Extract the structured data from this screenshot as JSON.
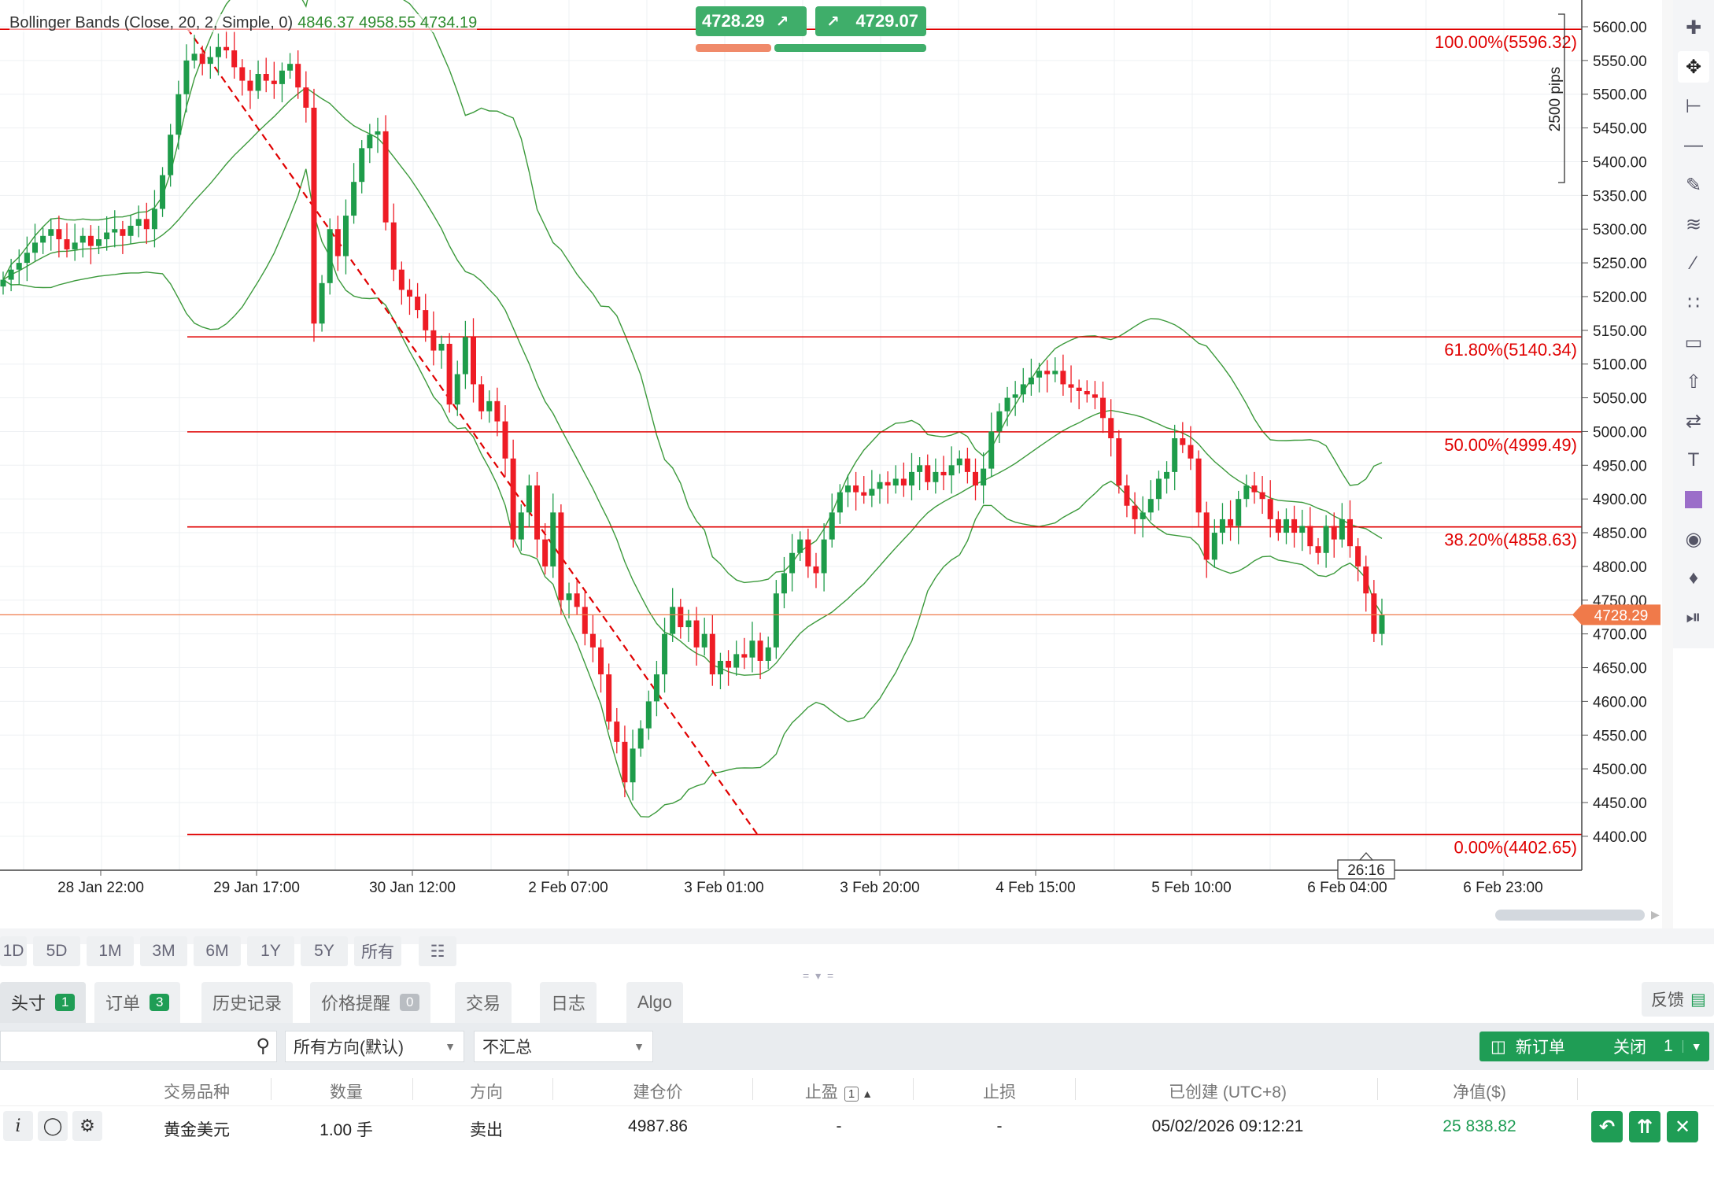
{
  "indicator": {
    "label": "Bollinger Bands (Close, 20, 2, Simple, 0)",
    "values": "4846.37  4958.55  4734.19"
  },
  "trade": {
    "sell_price": "4728.29",
    "buy_price": "4729.07"
  },
  "price_tag": "4728.29",
  "time_badge": "26:16",
  "pips_label": "2500 pips",
  "fib_levels": [
    {
      "label": "100.00%(5596.32)",
      "price": 5596.32
    },
    {
      "label": "61.80%(5140.34)",
      "price": 5140.34
    },
    {
      "label": "50.00%(4999.49)",
      "price": 4999.49
    },
    {
      "label": "38.20%(4858.63)",
      "price": 4858.63
    },
    {
      "label": "0.00%(4402.65)",
      "price": 4402.65
    }
  ],
  "colors": {
    "up": "#1e9c4a",
    "down": "#ee1c25",
    "fib": "#e00000",
    "band": "#3c9a3c",
    "price_line": "#f07a4a",
    "accent": "#1f9d55"
  },
  "price_axis": {
    "min": 4370,
    "max": 5630,
    "ticks": [
      "5600.00",
      "5550.00",
      "5500.00",
      "5450.00",
      "5400.00",
      "5350.00",
      "5300.00",
      "5250.00",
      "5200.00",
      "5150.00",
      "5100.00",
      "5050.00",
      "5000.00",
      "4950.00",
      "4900.00",
      "4850.00",
      "4800.00",
      "4750.00",
      "4700.00",
      "4650.00",
      "4600.00",
      "4550.00",
      "4500.00",
      "4450.00",
      "4400.00"
    ]
  },
  "time_axis": [
    "28 Jan 22:00",
    "29 Jan 17:00",
    "30 Jan 12:00",
    "2 Feb 07:00",
    "3 Feb 01:00",
    "3 Feb 20:00",
    "4 Feb 15:00",
    "5 Feb 10:00",
    "6 Feb 04:00",
    "6 Feb 23:00"
  ],
  "chart_data": {
    "type": "candlestick",
    "title": "",
    "ylim": [
      4370,
      5630
    ],
    "x_ticks": [
      "28 Jan 22:00",
      "29 Jan 17:00",
      "30 Jan 12:00",
      "2 Feb 07:00",
      "3 Feb 01:00",
      "3 Feb 20:00",
      "4 Feb 15:00",
      "5 Feb 10:00",
      "6 Feb 04:00",
      "6 Feb 23:00"
    ],
    "closes": [
      5225,
      5240,
      5250,
      5265,
      5280,
      5290,
      5300,
      5285,
      5270,
      5280,
      5290,
      5275,
      5285,
      5295,
      5300,
      5290,
      5305,
      5315,
      5300,
      5330,
      5380,
      5440,
      5500,
      5550,
      5560,
      5545,
      5555,
      5570,
      5565,
      5540,
      5520,
      5505,
      5530,
      5520,
      5515,
      5535,
      5545,
      5510,
      5480,
      5160,
      5220,
      5300,
      5260,
      5320,
      5370,
      5420,
      5440,
      5445,
      5310,
      5240,
      5210,
      5200,
      5180,
      5150,
      5120,
      5130,
      5040,
      5085,
      5140,
      5070,
      5030,
      5045,
      5015,
      4960,
      4840,
      4880,
      4920,
      4840,
      4800,
      4880,
      4750,
      4760,
      4740,
      4700,
      4680,
      4640,
      4570,
      4540,
      4480,
      4530,
      4560,
      4600,
      4640,
      4700,
      4740,
      4710,
      4720,
      4680,
      4700,
      4640,
      4660,
      4650,
      4670,
      4665,
      4690,
      4660,
      4680,
      4760,
      4790,
      4820,
      4840,
      4800,
      4790,
      4840,
      4880,
      4910,
      4920,
      4910,
      4905,
      4915,
      4925,
      4920,
      4930,
      4920,
      4940,
      4950,
      4925,
      4940,
      4935,
      4950,
      4960,
      4940,
      4920,
      4945,
      5000,
      5030,
      5050,
      5055,
      5070,
      5080,
      5090,
      5085,
      5090,
      5070,
      5065,
      5060,
      5055,
      5050,
      5020,
      4990,
      4920,
      4890,
      4870,
      4880,
      4900,
      4930,
      4940,
      4990,
      4980,
      4960,
      4880,
      4810,
      4850,
      4870,
      4860,
      4900,
      4920,
      4910,
      4900,
      4870,
      4850,
      4870,
      4850,
      4860,
      4830,
      4820,
      4860,
      4840,
      4870,
      4830,
      4800,
      4760,
      4700,
      4728.29
    ]
  },
  "range_buttons": [
    "1D",
    "5D",
    "1M",
    "3M",
    "6M",
    "1Y",
    "5Y",
    "所有"
  ],
  "tabs": [
    {
      "label": "头寸",
      "badge": "1"
    },
    {
      "label": "订单",
      "badge": "3"
    },
    {
      "label": "历史记录",
      "badge": ""
    },
    {
      "label": "价格提醒",
      "badge": "0"
    },
    {
      "label": "交易",
      "badge": ""
    },
    {
      "label": "日志",
      "badge": ""
    },
    {
      "label": "Algo",
      "badge": ""
    }
  ],
  "feedback_label": "反馈",
  "filters": {
    "direction": "所有方向(默认)",
    "aggregate": "不汇总"
  },
  "buttons": {
    "new_order": "新订单",
    "close": "关闭",
    "close_count": "1"
  },
  "table": {
    "headers": [
      "交易品种",
      "数量",
      "方向",
      "建仓价",
      "止盈",
      "止损",
      "已创建 (UTC+8)",
      "净值($)"
    ],
    "tp_badge": "1",
    "row": {
      "symbol": "黄金美元",
      "quantity": "1.00 手",
      "direction": "卖出",
      "open_price": "4987.86",
      "tp": "-",
      "sl": "-",
      "created": "05/02/2026 09:12:21",
      "net": "25 838.82"
    }
  }
}
